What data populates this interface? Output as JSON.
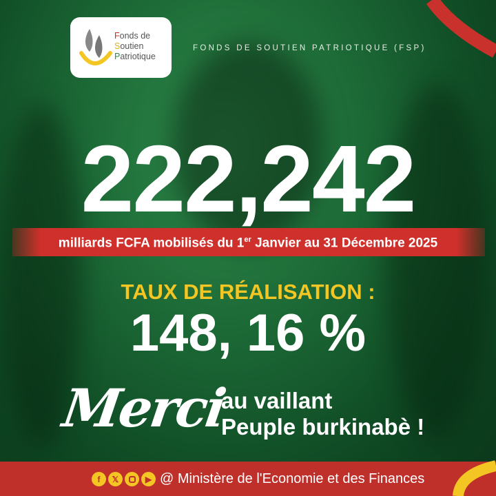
{
  "logo": {
    "lines": [
      "Fonds de",
      "Soutien",
      "Patriotique"
    ],
    "colors": {
      "F": "#c0302a",
      "S": "#f3c623",
      "P": "#2a8a4a"
    }
  },
  "header": {
    "title": "FONDS DE SOUTIEN PATRIOTIQUE (FSP)"
  },
  "main": {
    "amount": "222,242",
    "subtitle_pre": "milliards FCFA mobilisés du 1",
    "subtitle_sup": "er",
    "subtitle_post": " Janvier au 31 Décembre 2025",
    "rate_label": "TAUX DE RÉALISATION :",
    "rate_value": "148, 16 %",
    "merci": "Merci",
    "thanks_line1": "au vaillant",
    "thanks_line2": "Peuple burkinabè !"
  },
  "footer": {
    "socials": [
      "facebook-icon",
      "x-icon",
      "instagram-icon",
      "youtube-icon"
    ],
    "text": "@ Ministère de l'Economie et des Finances"
  },
  "colors": {
    "red": "#c0302a",
    "yellow": "#f3c623",
    "green": "#1d6b37"
  }
}
